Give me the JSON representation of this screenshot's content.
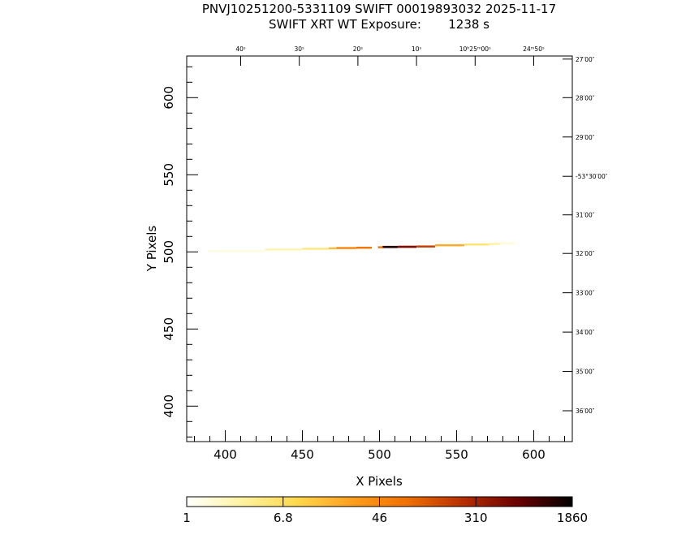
{
  "chart_data": {
    "type": "heatmap",
    "title": "PNVJ10251200-5331109 SWIFT 00019893032 2025-11-17",
    "subtitle": "SWIFT XRT WT Exposure:       1238 s",
    "xlabel": "X Pixels",
    "ylabel": "Y Pixels",
    "xlim": [
      375,
      625
    ],
    "ylim": [
      377,
      627
    ],
    "x_ticks": [
      400,
      450,
      500,
      550,
      600
    ],
    "y_ticks": [
      400,
      450,
      500,
      550,
      600
    ],
    "x_minor_step": 10,
    "y_minor_step": 10,
    "ra_axis": {
      "labels": [
        {
          "text": "40ˢ",
          "x": 410
        },
        {
          "text": "30ˢ",
          "x": 448
        },
        {
          "text": "20ˢ",
          "x": 486
        },
        {
          "text": "10ˢ",
          "x": 524
        },
        {
          "text": "10ʰ25ᵐ00ˢ",
          "x": 562
        },
        {
          "text": "24ᵐ50ˢ",
          "x": 600
        }
      ]
    },
    "dec_axis": {
      "labels": [
        {
          "text": "27′00″",
          "y": 625
        },
        {
          "text": "28′00″",
          "y": 600
        },
        {
          "text": "29′00″",
          "y": 574.5
        },
        {
          "text": "-53°30′00″",
          "y": 549
        },
        {
          "text": "31′00″",
          "y": 524
        },
        {
          "text": "32′00″",
          "y": 499
        },
        {
          "text": "33′00″",
          "y": 473.5
        },
        {
          "text": "34′00″",
          "y": 448
        },
        {
          "text": "35′00″",
          "y": 422.5
        },
        {
          "text": "36′00″",
          "y": 397
        }
      ]
    },
    "strip_segments": [
      {
        "x0": 389,
        "x1": 426,
        "y": 500.5,
        "h": 1.3,
        "level": 0.05
      },
      {
        "x0": 426,
        "x1": 450,
        "y": 501.5,
        "h": 1.3,
        "level": 0.12
      },
      {
        "x0": 450,
        "x1": 467,
        "y": 502.0,
        "h": 1.3,
        "level": 0.2
      },
      {
        "x0": 467,
        "x1": 472,
        "y": 502.3,
        "h": 1.3,
        "level": 0.35
      },
      {
        "x0": 472,
        "x1": 485,
        "y": 502.5,
        "h": 1.3,
        "level": 0.5
      },
      {
        "x0": 485,
        "x1": 495,
        "y": 502.7,
        "h": 1.3,
        "level": 0.55
      },
      {
        "x0": 499,
        "x1": 502,
        "y": 503.0,
        "h": 1.3,
        "level": 0.55
      },
      {
        "x0": 502,
        "x1": 512,
        "y": 503.2,
        "h": 1.4,
        "level": 0.95
      },
      {
        "x0": 512,
        "x1": 524,
        "y": 503.3,
        "h": 1.4,
        "level": 0.82
      },
      {
        "x0": 524,
        "x1": 536,
        "y": 503.5,
        "h": 1.3,
        "level": 0.68
      },
      {
        "x0": 536,
        "x1": 555,
        "y": 504.3,
        "h": 1.3,
        "level": 0.4
      },
      {
        "x0": 555,
        "x1": 571,
        "y": 504.8,
        "h": 1.3,
        "level": 0.22
      },
      {
        "x0": 571,
        "x1": 578,
        "y": 505.2,
        "h": 1.3,
        "level": 0.14
      },
      {
        "x0": 578,
        "x1": 588,
        "y": 505.6,
        "h": 1.2,
        "level": 0.06
      }
    ],
    "colorbar": {
      "tick_labels": [
        "1",
        "6.8",
        "46",
        "310",
        "1860"
      ],
      "stops": [
        "#ffffff",
        "#fff3a0",
        "#ffd84d",
        "#ff9f20",
        "#f07000",
        "#b83000",
        "#6a0000",
        "#000000"
      ]
    }
  }
}
